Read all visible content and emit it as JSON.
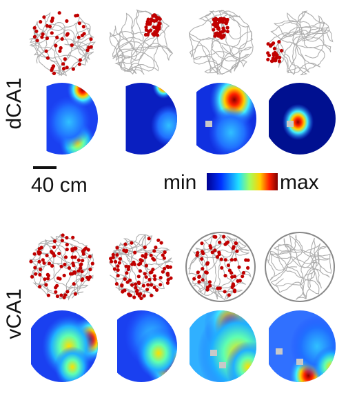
{
  "rows": [
    {
      "label": "dCA1"
    },
    {
      "label": "vCA1"
    }
  ],
  "scale_bar": "40 cm",
  "colorbar": {
    "min": "min",
    "max": "max"
  }
}
